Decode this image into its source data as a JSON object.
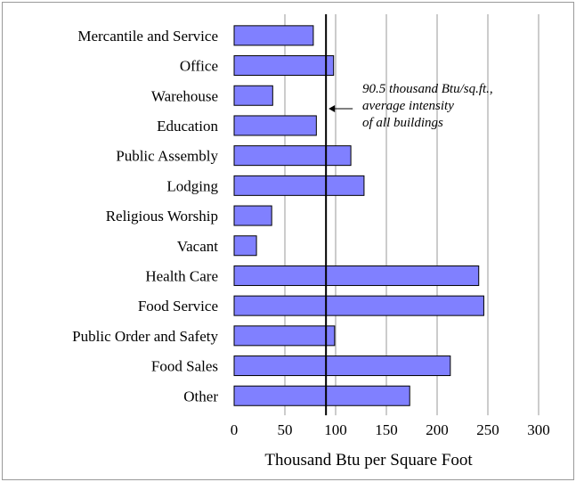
{
  "chart_data": {
    "type": "bar",
    "orientation": "horizontal",
    "categories": [
      "Mercantile and Service",
      "Office",
      "Warehouse",
      "Education",
      "Public Assembly",
      "Lodging",
      "Religious Worship",
      "Vacant",
      "Health Care",
      "Food Service",
      "Public Order and Safety",
      "Food Sales",
      "Other"
    ],
    "values": [
      78,
      98,
      38,
      81,
      115,
      128,
      37,
      22,
      241,
      246,
      99,
      213,
      173
    ],
    "xlim": [
      0,
      300
    ],
    "xticks": [
      0,
      50,
      100,
      150,
      200,
      250,
      300
    ],
    "xlabel": "Thousand Btu per Square Foot",
    "ylabel": "",
    "title": "",
    "grid": "vertical",
    "bar_color": "#8080ff",
    "bar_edge_color": "#000000",
    "reference_line": {
      "value": 90.5,
      "annotation": [
        "90.5 thousand Btu/sq.ft.,",
        "average intensity",
        "of all buildings"
      ]
    }
  }
}
